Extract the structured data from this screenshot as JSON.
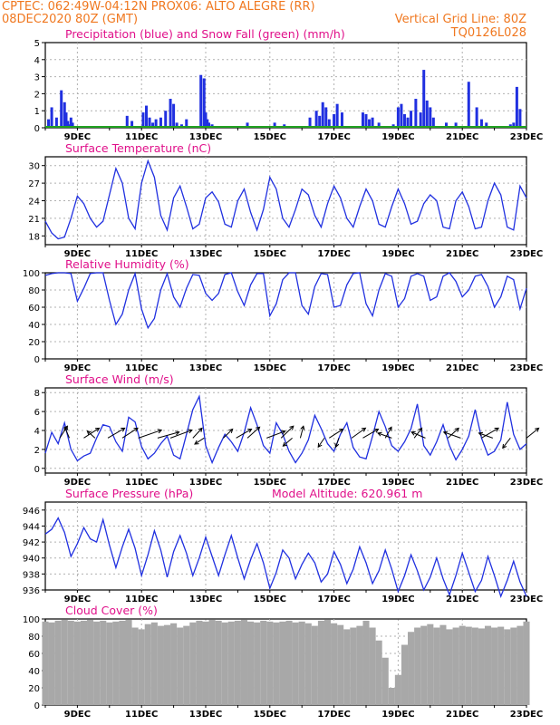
{
  "header": {
    "line1": "CPTEC:   062:49W-04:12N   PROX06: ALTO ALEGRE (RR)",
    "line2_left": "08DEC2020 80Z (GMT)",
    "line2_right": "Vertical Grid Line: 80Z",
    "code": "TQ0126L028"
  },
  "colors": {
    "header": "#f07820",
    "title": "#e0108a",
    "series": "#2030e0",
    "snow": "#20a020",
    "cloud": "#a8a8a8",
    "grid": "#b0b0b0"
  },
  "x_axis": {
    "range_days": [
      8.0,
      23.0
    ],
    "ticks": [
      {
        "day": 9,
        "label": "9DEC"
      },
      {
        "day": 11,
        "label": "11DEC"
      },
      {
        "day": 13,
        "label": "13DEC"
      },
      {
        "day": 15,
        "label": "15DEC"
      },
      {
        "day": 17,
        "label": "17DEC"
      },
      {
        "day": 19,
        "label": "19DEC"
      },
      {
        "day": 21,
        "label": "21DEC"
      },
      {
        "day": 23,
        "label": "23DEC"
      }
    ]
  },
  "chart_data": [
    {
      "type": "bar",
      "title": "Precipitation (blue) and Snow Fall (green) (mm/h)",
      "ylim": [
        0,
        5
      ],
      "yticks": [
        0,
        1,
        2,
        3,
        4,
        5
      ],
      "series": [
        {
          "name": "Precipitation",
          "x": [
            8.1,
            8.2,
            8.35,
            8.5,
            8.6,
            8.65,
            8.7,
            8.75,
            8.8,
            8.85,
            10.4,
            10.55,
            10.7,
            11.05,
            11.15,
            11.25,
            11.35,
            11.45,
            11.6,
            11.75,
            11.9,
            12.0,
            12.1,
            12.25,
            12.4,
            12.5,
            12.85,
            12.95,
            13.0,
            13.05,
            13.1,
            13.2,
            13.3,
            13.8,
            14.3,
            14.65,
            15.15,
            15.45,
            15.75,
            16.1,
            16.25,
            16.45,
            16.55,
            16.65,
            16.75,
            16.85,
            17.0,
            17.1,
            17.25,
            17.9,
            18.0,
            18.1,
            18.2,
            18.4,
            18.55,
            18.85,
            19.0,
            19.1,
            19.2,
            19.3,
            19.4,
            19.55,
            19.7,
            19.8,
            19.9,
            20.0,
            20.1,
            20.5,
            20.6,
            20.7,
            20.8,
            21.2,
            21.45,
            21.6,
            21.75,
            22.5,
            22.6,
            22.7,
            22.8
          ],
          "values": [
            0.5,
            1.2,
            0.6,
            2.2,
            1.5,
            0.9,
            0.4,
            0.2,
            0.6,
            0.3,
            0.1,
            0.7,
            0.4,
            0.9,
            1.3,
            0.6,
            0.3,
            0.5,
            0.6,
            1.0,
            1.7,
            1.4,
            0.3,
            0.2,
            0.5,
            0.1,
            3.1,
            2.9,
            0.9,
            0.5,
            0.3,
            0.2,
            0.1,
            0.1,
            0.3,
            0.1,
            0.3,
            0.2,
            0.1,
            0.1,
            0.6,
            1.0,
            0.7,
            1.5,
            1.2,
            0.5,
            0.8,
            1.4,
            0.9,
            0.9,
            0.8,
            0.5,
            0.6,
            0.3,
            0.1,
            0.2,
            1.2,
            1.4,
            0.8,
            0.6,
            1.0,
            1.7,
            0.9,
            3.4,
            1.6,
            1.2,
            0.6,
            0.3,
            0.1,
            0.1,
            0.3,
            2.7,
            1.2,
            0.5,
            0.3,
            0.2,
            0.3,
            2.4,
            1.1
          ]
        },
        {
          "name": "Snow Fall",
          "x": [
            8.0,
            23.0
          ],
          "values": [
            0,
            0
          ]
        }
      ]
    },
    {
      "type": "line",
      "title": "Surface Temperature (nC)",
      "ylim": [
        16.5,
        31.5
      ],
      "yticks": [
        18,
        21,
        24,
        27,
        30
      ],
      "x": [
        8.0,
        8.2,
        8.4,
        8.6,
        8.8,
        9.0,
        9.2,
        9.4,
        9.6,
        9.8,
        10.0,
        10.2,
        10.4,
        10.6,
        10.8,
        11.0,
        11.2,
        11.4,
        11.6,
        11.8,
        12.0,
        12.2,
        12.4,
        12.6,
        12.8,
        13.0,
        13.2,
        13.4,
        13.6,
        13.8,
        14.0,
        14.2,
        14.4,
        14.6,
        14.8,
        15.0,
        15.2,
        15.4,
        15.6,
        15.8,
        16.0,
        16.2,
        16.4,
        16.6,
        16.8,
        17.0,
        17.2,
        17.4,
        17.6,
        17.8,
        18.0,
        18.2,
        18.4,
        18.6,
        18.8,
        19.0,
        19.2,
        19.4,
        19.6,
        19.8,
        20.0,
        20.2,
        20.4,
        20.6,
        20.8,
        21.0,
        21.2,
        21.4,
        21.6,
        21.8,
        22.0,
        22.2,
        22.4,
        22.6,
        22.8,
        23.0
      ],
      "values": [
        20.5,
        18.5,
        17.5,
        17.8,
        21.0,
        24.8,
        23.5,
        21.0,
        19.5,
        20.5,
        25.0,
        29.5,
        27.0,
        21.0,
        19.2,
        27.0,
        30.8,
        28.0,
        21.5,
        19.0,
        24.5,
        26.5,
        23.0,
        19.2,
        20.0,
        24.5,
        25.5,
        23.8,
        20.0,
        19.5,
        24.0,
        26.0,
        22.0,
        19.0,
        22.5,
        28.0,
        26.0,
        21.0,
        19.5,
        22.5,
        26.0,
        25.0,
        21.5,
        19.5,
        23.5,
        26.5,
        24.5,
        21.0,
        19.5,
        23.0,
        26.0,
        24.0,
        20.0,
        19.5,
        23.0,
        26.0,
        23.5,
        20.0,
        20.5,
        23.5,
        25.0,
        24.0,
        19.5,
        19.2,
        24.0,
        25.5,
        23.0,
        19.2,
        19.5,
        24.0,
        27.0,
        25.0,
        19.5,
        19.0,
        26.5,
        24.5
      ]
    },
    {
      "type": "line",
      "title": "Relative Humidity (%)",
      "ylim": [
        0,
        100
      ],
      "yticks": [
        0,
        20,
        40,
        60,
        80,
        100
      ],
      "x": [
        8.0,
        8.2,
        8.4,
        8.6,
        8.8,
        9.0,
        9.2,
        9.4,
        9.6,
        9.8,
        10.0,
        10.2,
        10.4,
        10.6,
        10.8,
        11.0,
        11.2,
        11.4,
        11.6,
        11.8,
        12.0,
        12.2,
        12.4,
        12.6,
        12.8,
        13.0,
        13.2,
        13.4,
        13.6,
        13.8,
        14.0,
        14.2,
        14.4,
        14.6,
        14.8,
        15.0,
        15.2,
        15.4,
        15.6,
        15.8,
        16.0,
        16.2,
        16.4,
        16.6,
        16.8,
        17.0,
        17.2,
        17.4,
        17.6,
        17.8,
        18.0,
        18.2,
        18.4,
        18.6,
        18.8,
        19.0,
        19.2,
        19.4,
        19.6,
        19.8,
        20.0,
        20.2,
        20.4,
        20.6,
        20.8,
        21.0,
        21.2,
        21.4,
        21.6,
        21.8,
        22.0,
        22.2,
        22.4,
        22.6,
        22.8,
        23.0
      ],
      "values": [
        97,
        99,
        100,
        100,
        99,
        67,
        82,
        99,
        100,
        100,
        68,
        40,
        52,
        80,
        99,
        58,
        36,
        47,
        80,
        99,
        72,
        60,
        82,
        98,
        97,
        76,
        68,
        76,
        98,
        100,
        78,
        62,
        86,
        99,
        99,
        50,
        64,
        92,
        100,
        100,
        62,
        52,
        84,
        99,
        98,
        60,
        62,
        86,
        99,
        100,
        64,
        50,
        80,
        99,
        96,
        60,
        70,
        96,
        99,
        96,
        68,
        72,
        96,
        100,
        90,
        72,
        80,
        96,
        98,
        84,
        60,
        72,
        96,
        92,
        58,
        82
      ]
    },
    {
      "type": "line",
      "title": "Surface Wind (m/s)",
      "ylim": [
        -0.5,
        8.5
      ],
      "yticks": [
        0,
        2,
        4,
        6,
        8
      ],
      "x": [
        8.0,
        8.2,
        8.4,
        8.6,
        8.8,
        9.0,
        9.2,
        9.4,
        9.6,
        9.8,
        10.0,
        10.2,
        10.4,
        10.6,
        10.8,
        11.0,
        11.2,
        11.4,
        11.6,
        11.8,
        12.0,
        12.2,
        12.4,
        12.6,
        12.8,
        13.0,
        13.2,
        13.4,
        13.6,
        13.8,
        14.0,
        14.2,
        14.4,
        14.6,
        14.8,
        15.0,
        15.2,
        15.4,
        15.6,
        15.8,
        16.0,
        16.2,
        16.4,
        16.6,
        16.8,
        17.0,
        17.2,
        17.4,
        17.6,
        17.8,
        18.0,
        18.2,
        18.4,
        18.6,
        18.8,
        19.0,
        19.2,
        19.4,
        19.6,
        19.8,
        20.0,
        20.2,
        20.4,
        20.6,
        20.8,
        21.0,
        21.2,
        21.4,
        21.6,
        21.8,
        22.0,
        22.2,
        22.4,
        22.6,
        22.8,
        23.0
      ],
      "values": [
        1.6,
        3.8,
        2.6,
        4.8,
        2.0,
        0.8,
        1.3,
        1.6,
        3.2,
        4.6,
        4.4,
        2.8,
        1.8,
        5.4,
        4.9,
        2.3,
        1.0,
        1.6,
        2.6,
        3.4,
        1.4,
        1.0,
        3.6,
        6.2,
        7.6,
        2.4,
        0.6,
        2.2,
        3.6,
        2.8,
        1.8,
        3.8,
        6.4,
        4.6,
        2.4,
        1.6,
        4.8,
        3.6,
        1.8,
        0.6,
        1.6,
        3.0,
        5.6,
        4.2,
        2.6,
        1.8,
        3.6,
        4.8,
        2.2,
        1.2,
        1.0,
        3.4,
        6.0,
        4.4,
        2.4,
        1.8,
        2.8,
        4.2,
        6.8,
        2.4,
        1.4,
        2.8,
        4.6,
        2.4,
        0.9,
        2.0,
        3.4,
        6.2,
        3.2,
        1.4,
        1.8,
        3.0,
        7.0,
        3.6,
        2.0,
        2.6
      ]
    },
    {
      "type": "line",
      "title": "Surface Pressure (hPa)",
      "annotation": "Model Altitude: 620.961  m",
      "ylim": [
        936,
        947
      ],
      "yticks": [
        936,
        938,
        940,
        942,
        944,
        946
      ],
      "x": [
        8.0,
        8.2,
        8.4,
        8.6,
        8.8,
        9.0,
        9.2,
        9.4,
        9.6,
        9.8,
        10.0,
        10.2,
        10.4,
        10.6,
        10.8,
        11.0,
        11.2,
        11.4,
        11.6,
        11.8,
        12.0,
        12.2,
        12.4,
        12.6,
        12.8,
        13.0,
        13.2,
        13.4,
        13.6,
        13.8,
        14.0,
        14.2,
        14.4,
        14.6,
        14.8,
        15.0,
        15.2,
        15.4,
        15.6,
        15.8,
        16.0,
        16.2,
        16.4,
        16.6,
        16.8,
        17.0,
        17.2,
        17.4,
        17.6,
        17.8,
        18.0,
        18.2,
        18.4,
        18.6,
        18.8,
        19.0,
        19.2,
        19.4,
        19.6,
        19.8,
        20.0,
        20.2,
        20.4,
        20.6,
        20.8,
        21.0,
        21.2,
        21.4,
        21.6,
        21.8,
        22.0,
        22.2,
        22.4,
        22.6,
        22.8,
        23.0
      ],
      "values": [
        943.0,
        943.6,
        945.0,
        943.2,
        940.2,
        941.8,
        943.8,
        942.4,
        942.0,
        944.8,
        941.6,
        938.8,
        941.4,
        943.6,
        941.2,
        937.8,
        940.4,
        943.4,
        941.0,
        937.6,
        940.8,
        942.8,
        940.6,
        937.8,
        940.0,
        942.6,
        940.2,
        937.8,
        940.4,
        942.8,
        940.0,
        937.4,
        939.8,
        941.8,
        939.4,
        936.2,
        938.2,
        941.0,
        940.0,
        937.4,
        939.2,
        940.6,
        939.4,
        937.0,
        938.0,
        940.8,
        939.2,
        936.8,
        938.6,
        941.4,
        939.4,
        936.8,
        938.4,
        941.0,
        938.6,
        935.8,
        937.8,
        940.4,
        938.4,
        936.0,
        937.6,
        940.0,
        937.4,
        935.4,
        937.8,
        940.6,
        938.2,
        935.8,
        937.2,
        940.2,
        937.8,
        935.2,
        937.2,
        939.6,
        937.0,
        935.2
      ]
    },
    {
      "type": "bar",
      "title": "Cloud Cover (%)",
      "ylim": [
        0,
        100
      ],
      "yticks": [
        0,
        20,
        40,
        60,
        80,
        100
      ],
      "x": [
        8.0,
        8.2,
        8.4,
        8.6,
        8.8,
        9.0,
        9.2,
        9.4,
        9.6,
        9.8,
        10.0,
        10.2,
        10.4,
        10.6,
        10.8,
        11.0,
        11.2,
        11.4,
        11.6,
        11.8,
        12.0,
        12.2,
        12.4,
        12.6,
        12.8,
        13.0,
        13.2,
        13.4,
        13.6,
        13.8,
        14.0,
        14.2,
        14.4,
        14.6,
        14.8,
        15.0,
        15.2,
        15.4,
        15.6,
        15.8,
        16.0,
        16.2,
        16.4,
        16.6,
        16.8,
        17.0,
        17.2,
        17.4,
        17.6,
        17.8,
        18.0,
        18.2,
        18.4,
        18.6,
        18.8,
        19.0,
        19.2,
        19.4,
        19.6,
        19.8,
        20.0,
        20.2,
        20.4,
        20.6,
        20.8,
        21.0,
        21.2,
        21.4,
        21.6,
        21.8,
        22.0,
        22.2,
        22.4,
        22.6,
        22.8,
        23.0
      ],
      "values": [
        97,
        96,
        98,
        99,
        98,
        97,
        98,
        99,
        97,
        98,
        96,
        97,
        98,
        99,
        90,
        88,
        94,
        96,
        92,
        93,
        95,
        90,
        92,
        96,
        98,
        97,
        99,
        98,
        96,
        97,
        98,
        99,
        97,
        96,
        98,
        97,
        96,
        97,
        98,
        96,
        97,
        95,
        92,
        98,
        99,
        95,
        93,
        88,
        90,
        92,
        98,
        90,
        75,
        55,
        20,
        35,
        70,
        85,
        90,
        92,
        94,
        90,
        93,
        88,
        90,
        92,
        91,
        90,
        89,
        92,
        90,
        91,
        88,
        90,
        92,
        97
      ]
    },
    {
      "type": "scatter",
      "title": "Wind direction arrows",
      "x": [
        8.45,
        8.75,
        9.2,
        9.55,
        9.95,
        10.4,
        10.9,
        11.5,
        11.9,
        12.6,
        12.95,
        13.55,
        13.95,
        14.3,
        14.9,
        15.35,
        15.7,
        15.95,
        16.7,
        16.85,
        17.15,
        17.55,
        17.9,
        18.6,
        18.8,
        19.5,
        19.85,
        20.55,
        20.95,
        21.6,
        21.95,
        22.5,
        23.0
      ],
      "u": [
        0.5,
        -0.3,
        1.0,
        -0.5,
        1.1,
        1.0,
        1.5,
        1.4,
        1.4,
        0.6,
        -0.6,
        0.6,
        1.0,
        0.8,
        1.2,
        0.8,
        -0.6,
        0.2,
        -0.4,
        0.9,
        -0.2,
        0.9,
        1.0,
        0.4,
        -0.9,
        0.5,
        -0.9,
        0.7,
        -1.1,
        1.1,
        -0.9,
        -0.5,
        0.8
      ],
      "v": [
        1.2,
        1.1,
        1.0,
        0.7,
        1.0,
        1.0,
        0.8,
        0.6,
        0.8,
        1.0,
        -0.6,
        0.9,
        0.9,
        1.1,
        0.7,
        1.2,
        -0.8,
        1.2,
        -0.9,
        0.9,
        -0.9,
        1.0,
        0.9,
        1.1,
        0.5,
        1.0,
        0.6,
        1.0,
        0.6,
        1.0,
        0.5,
        -1.0,
        1.0
      ]
    }
  ]
}
